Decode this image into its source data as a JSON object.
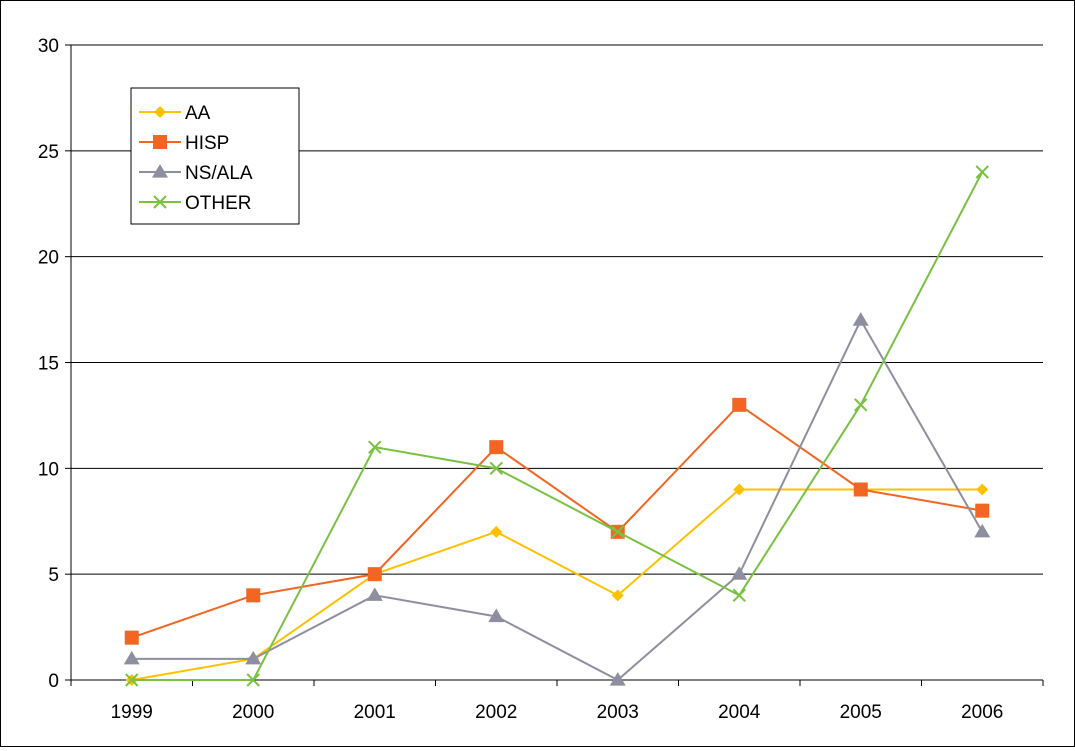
{
  "chart_data": {
    "type": "line",
    "title": "",
    "xlabel": "",
    "ylabel": "",
    "categories": [
      "1999",
      "2000",
      "2001",
      "2002",
      "2003",
      "2004",
      "2005",
      "2006"
    ],
    "ylim": [
      0,
      30
    ],
    "yticks": [
      0,
      5,
      10,
      15,
      20,
      25,
      30
    ],
    "grid": "horizontal",
    "legend_position": "top-left",
    "series": [
      {
        "name": "AA",
        "color": "#FFC000",
        "marker": "diamond",
        "values": [
          0,
          1,
          5,
          7,
          4,
          9,
          9,
          9
        ]
      },
      {
        "name": "HISP",
        "color": "#F26522",
        "marker": "square",
        "values": [
          2,
          4,
          5,
          11,
          7,
          13,
          9,
          8
        ]
      },
      {
        "name": "NS/ALA",
        "color": "#8E8EA0",
        "marker": "triangle",
        "values": [
          1,
          1,
          4,
          3,
          0,
          5,
          17,
          7
        ]
      },
      {
        "name": "OTHER",
        "color": "#7AC142",
        "marker": "x",
        "values": [
          0,
          0,
          11,
          10,
          7,
          4,
          13,
          24
        ]
      }
    ]
  }
}
